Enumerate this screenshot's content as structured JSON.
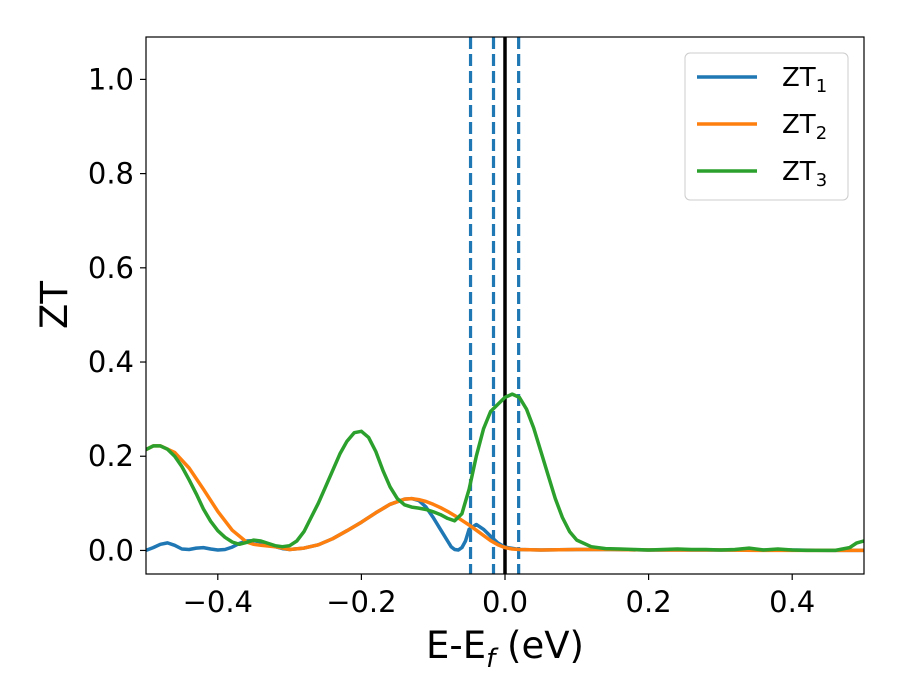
{
  "chart_data": {
    "type": "line",
    "title": "",
    "xlabel": {
      "main": "E-E",
      "sub": "f",
      "suffix": " (eV)"
    },
    "ylabel": "ZT",
    "xlim": [
      -0.5,
      0.5
    ],
    "ylim": [
      -0.05,
      1.09
    ],
    "xticks": [
      -0.4,
      -0.2,
      0.0,
      0.2,
      0.4
    ],
    "xtick_labels": [
      "−0.4",
      "−0.2",
      "0.0",
      "0.2",
      "0.4"
    ],
    "yticks": [
      0.0,
      0.2,
      0.4,
      0.6,
      0.8,
      1.0
    ],
    "ytick_labels": [
      "0.0",
      "0.2",
      "0.4",
      "0.6",
      "0.8",
      "1.0"
    ],
    "grid": false,
    "legend_position": "top-right",
    "reference_lines": [
      {
        "x": -0.048,
        "style": "dashed",
        "color": "#1f77b4"
      },
      {
        "x": -0.016,
        "style": "dashed",
        "color": "#1f77b4"
      },
      {
        "x": 0.0,
        "style": "solid",
        "color": "#000000"
      },
      {
        "x": 0.019,
        "style": "dashed",
        "color": "#1f77b4"
      }
    ],
    "series": [
      {
        "name": "ZT",
        "sub": "1",
        "color": "#1f77b4",
        "x": [
          -0.5,
          -0.49,
          -0.48,
          -0.47,
          -0.46,
          -0.45,
          -0.44,
          -0.43,
          -0.42,
          -0.41,
          -0.4,
          -0.39,
          -0.38,
          -0.37,
          -0.36,
          -0.35,
          -0.34,
          -0.33,
          -0.32,
          -0.31,
          -0.3,
          -0.28,
          -0.26,
          -0.24,
          -0.22,
          -0.2,
          -0.18,
          -0.16,
          -0.14,
          -0.13,
          -0.12,
          -0.11,
          -0.1,
          -0.09,
          -0.08,
          -0.075,
          -0.07,
          -0.065,
          -0.06,
          -0.055,
          -0.05,
          -0.04,
          -0.03,
          -0.02,
          -0.01,
          0.0,
          0.02,
          0.05,
          0.1,
          0.15,
          0.2,
          0.25,
          0.3,
          0.35,
          0.4,
          0.45,
          0.5
        ],
        "y": [
          0.0,
          0.006,
          0.013,
          0.016,
          0.011,
          0.003,
          0.002,
          0.005,
          0.006,
          0.003,
          0.001,
          0.002,
          0.007,
          0.015,
          0.02,
          0.021,
          0.018,
          0.012,
          0.008,
          0.004,
          0.002,
          0.005,
          0.012,
          0.025,
          0.042,
          0.06,
          0.08,
          0.098,
          0.109,
          0.11,
          0.106,
          0.092,
          0.07,
          0.045,
          0.02,
          0.008,
          0.002,
          0.001,
          0.006,
          0.02,
          0.045,
          0.055,
          0.045,
          0.03,
          0.016,
          0.007,
          0.002,
          0.001,
          0.002,
          0.002,
          0.001,
          0.001,
          0.001,
          0.001,
          0.001,
          0.0,
          0.0
        ]
      },
      {
        "name": "ZT",
        "sub": "2",
        "color": "#ff7f0e",
        "x": [
          -0.5,
          -0.49,
          -0.48,
          -0.46,
          -0.44,
          -0.42,
          -0.4,
          -0.38,
          -0.36,
          -0.35,
          -0.34,
          -0.32,
          -0.3,
          -0.28,
          -0.26,
          -0.24,
          -0.22,
          -0.2,
          -0.18,
          -0.16,
          -0.14,
          -0.13,
          -0.12,
          -0.11,
          -0.1,
          -0.09,
          -0.08,
          -0.07,
          -0.06,
          -0.05,
          -0.04,
          -0.03,
          -0.02,
          -0.01,
          0.0,
          0.01,
          0.02,
          0.05,
          0.1,
          0.15,
          0.2,
          0.25,
          0.3,
          0.35,
          0.4,
          0.45,
          0.5
        ],
        "y": [
          0.214,
          0.222,
          0.222,
          0.208,
          0.175,
          0.13,
          0.083,
          0.043,
          0.018,
          0.013,
          0.011,
          0.008,
          0.002,
          0.005,
          0.012,
          0.025,
          0.042,
          0.06,
          0.08,
          0.098,
          0.109,
          0.11,
          0.108,
          0.104,
          0.098,
          0.091,
          0.083,
          0.074,
          0.064,
          0.054,
          0.043,
          0.032,
          0.021,
          0.012,
          0.006,
          0.003,
          0.002,
          0.001,
          0.002,
          0.002,
          0.001,
          0.001,
          0.001,
          0.0,
          0.0,
          0.0,
          0.0
        ]
      },
      {
        "name": "ZT",
        "sub": "3",
        "color": "#2ca02c",
        "x": [
          -0.5,
          -0.49,
          -0.48,
          -0.47,
          -0.46,
          -0.45,
          -0.44,
          -0.43,
          -0.42,
          -0.41,
          -0.4,
          -0.39,
          -0.38,
          -0.37,
          -0.36,
          -0.35,
          -0.34,
          -0.33,
          -0.32,
          -0.31,
          -0.3,
          -0.29,
          -0.28,
          -0.27,
          -0.26,
          -0.25,
          -0.24,
          -0.23,
          -0.22,
          -0.21,
          -0.2,
          -0.19,
          -0.18,
          -0.17,
          -0.16,
          -0.15,
          -0.14,
          -0.13,
          -0.12,
          -0.11,
          -0.1,
          -0.09,
          -0.08,
          -0.07,
          -0.06,
          -0.05,
          -0.04,
          -0.03,
          -0.02,
          -0.01,
          0.0,
          0.01,
          0.02,
          0.03,
          0.04,
          0.05,
          0.06,
          0.07,
          0.08,
          0.09,
          0.1,
          0.12,
          0.14,
          0.16,
          0.18,
          0.2,
          0.22,
          0.24,
          0.26,
          0.28,
          0.3,
          0.32,
          0.34,
          0.36,
          0.38,
          0.4,
          0.42,
          0.44,
          0.46,
          0.48,
          0.49,
          0.5
        ],
        "y": [
          0.214,
          0.222,
          0.222,
          0.215,
          0.2,
          0.178,
          0.15,
          0.12,
          0.088,
          0.062,
          0.042,
          0.028,
          0.018,
          0.013,
          0.017,
          0.022,
          0.02,
          0.015,
          0.01,
          0.008,
          0.01,
          0.02,
          0.04,
          0.07,
          0.1,
          0.135,
          0.17,
          0.205,
          0.232,
          0.25,
          0.253,
          0.24,
          0.21,
          0.17,
          0.135,
          0.11,
          0.097,
          0.092,
          0.09,
          0.087,
          0.082,
          0.076,
          0.068,
          0.063,
          0.078,
          0.13,
          0.2,
          0.258,
          0.295,
          0.31,
          0.325,
          0.332,
          0.325,
          0.3,
          0.26,
          0.21,
          0.16,
          0.11,
          0.07,
          0.04,
          0.022,
          0.008,
          0.004,
          0.003,
          0.002,
          0.001,
          0.002,
          0.003,
          0.002,
          0.002,
          0.001,
          0.002,
          0.005,
          0.001,
          0.003,
          0.001,
          0.0,
          0.0,
          0.0,
          0.006,
          0.016,
          0.02
        ]
      }
    ]
  }
}
